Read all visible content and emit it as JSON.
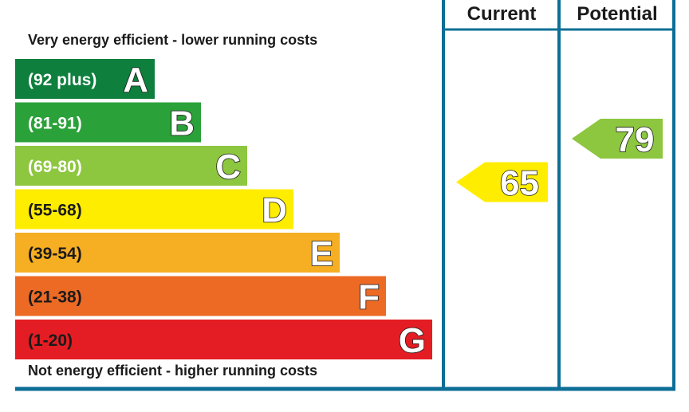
{
  "chart_data": {
    "type": "bar",
    "top_caption": "Very energy efficient - lower running costs",
    "bottom_caption": "Not energy efficient - higher running costs",
    "columns": {
      "current": "Current",
      "potential": "Potential"
    },
    "bands": [
      {
        "letter": "A",
        "range": "(92 plus)",
        "min": 92,
        "max": null,
        "color": "#0e7f3d"
      },
      {
        "letter": "B",
        "range": "(81-91)",
        "min": 81,
        "max": 91,
        "color": "#2ba13a"
      },
      {
        "letter": "C",
        "range": "(69-80)",
        "min": 69,
        "max": 80,
        "color": "#8dc63f"
      },
      {
        "letter": "D",
        "range": "(55-68)",
        "min": 55,
        "max": 68,
        "color": "#ffed00"
      },
      {
        "letter": "E",
        "range": "(39-54)",
        "min": 39,
        "max": 54,
        "color": "#f6ae22"
      },
      {
        "letter": "F",
        "range": "(21-38)",
        "min": 21,
        "max": 38,
        "color": "#ec6a24"
      },
      {
        "letter": "G",
        "range": "(1-20)",
        "min": 1,
        "max": 20,
        "color": "#e31d23"
      }
    ],
    "current": {
      "value": 65,
      "band": "D"
    },
    "potential": {
      "value": 79,
      "band": "C"
    }
  },
  "colors": {
    "frame": "#0e6f96",
    "text": "#1a1a1a"
  }
}
